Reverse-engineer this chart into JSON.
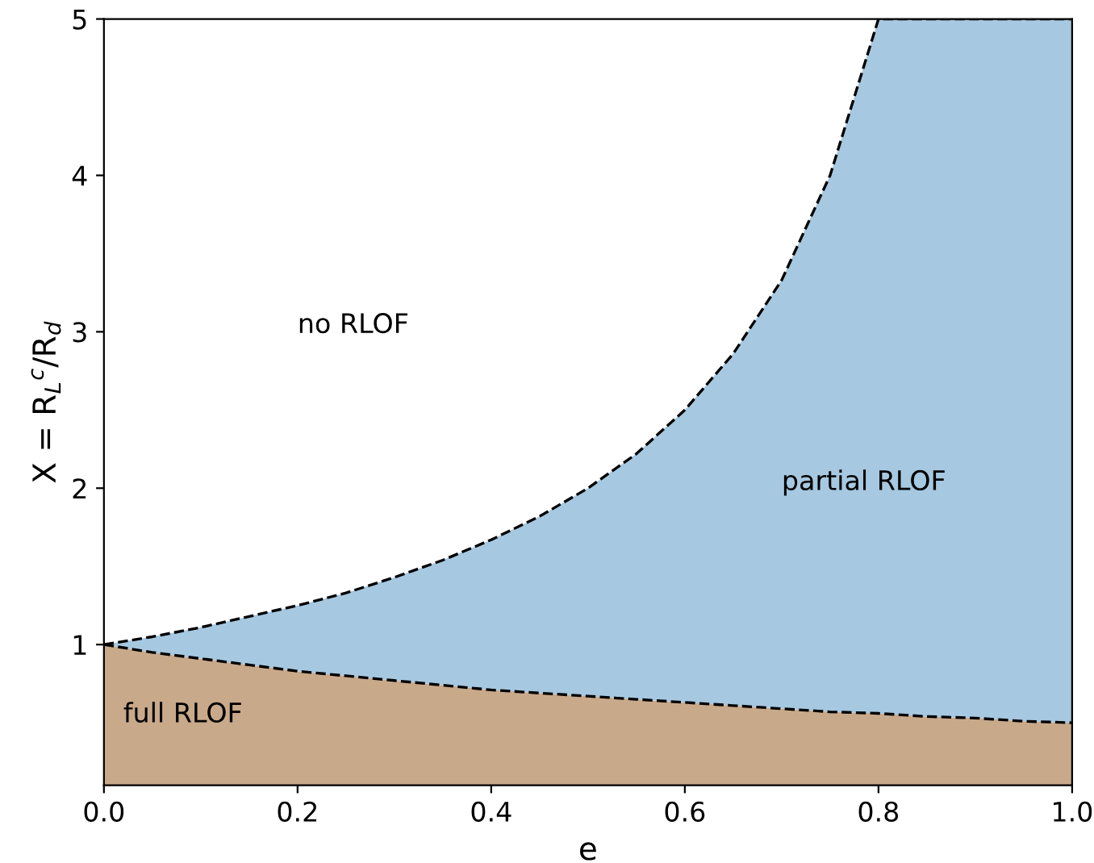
{
  "chart_data": {
    "type": "area",
    "xlabel": "e",
    "ylabel": "X = R$_{L}$$^{c}$/R$_{d}$",
    "x": [
      0,
      0.05,
      0.1,
      0.15,
      0.2,
      0.25,
      0.3,
      0.35,
      0.4,
      0.45,
      0.5,
      0.55,
      0.6,
      0.65,
      0.7,
      0.75,
      0.8,
      0.85,
      0.9,
      0.95,
      1.0
    ],
    "series": [
      {
        "color": "#c8a98a",
        "values": [
          1,
          0.95,
          0.91,
          0.87,
          0.83,
          0.8,
          0.77,
          0.74,
          0.71,
          0.69,
          0.67,
          0.65,
          0.63,
          0.61,
          0.59,
          0.57,
          0.56,
          0.54,
          0.53,
          0.51,
          0.5
        ]
      },
      {
        "color": "#a6c8e0",
        "values": [
          1,
          1.05,
          1.11,
          1.18,
          1.25,
          1.33,
          1.43,
          1.54,
          1.67,
          1.82,
          2,
          2.22,
          2.5,
          2.86,
          3.33,
          4,
          5,
          5,
          5,
          5,
          5
        ]
      }
    ],
    "line_style": "dashed",
    "xlim": [
      0,
      1.0
    ],
    "ylim": [
      0.1,
      5
    ],
    "xticks": [
      {
        "value": 0,
        "label": "0.0"
      },
      0.2,
      0.4,
      0.6,
      0.8,
      {
        "value": 1,
        "label": "1.0"
      }
    ],
    "yticks": [
      1,
      2,
      3,
      4,
      5
    ],
    "grid": false,
    "legend": false,
    "annotations": [
      "no RLOF",
      "partial RLOF",
      "full RLOF"
    ]
  }
}
